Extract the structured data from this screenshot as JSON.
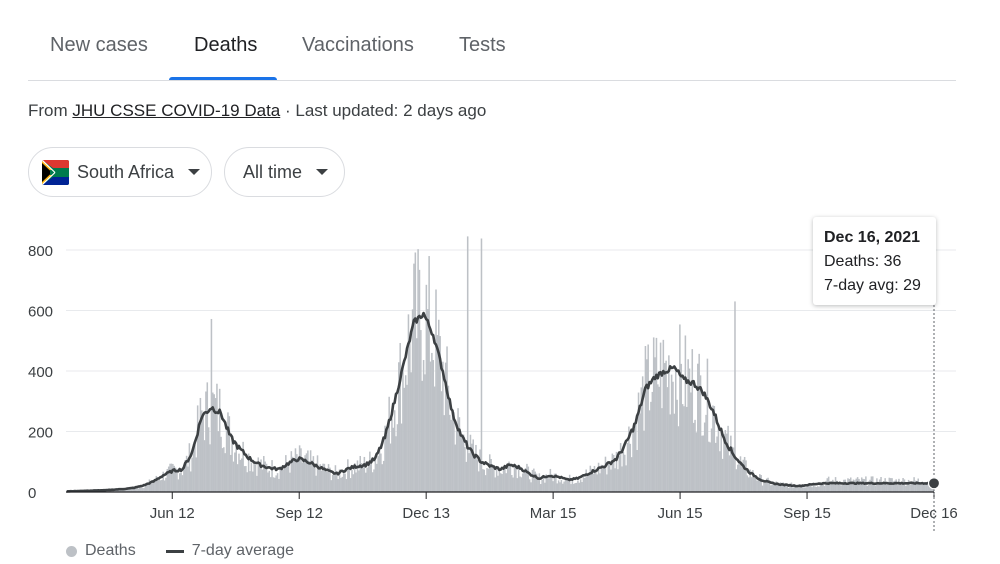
{
  "tabs": [
    {
      "label": "New cases",
      "active": false
    },
    {
      "label": "Deaths",
      "active": true
    },
    {
      "label": "Vaccinations",
      "active": false
    },
    {
      "label": "Tests",
      "active": false
    }
  ],
  "source": {
    "prefix": "From",
    "link": "JHU CSSE COVID-19 Data",
    "updated": "· Last updated: 2 days ago"
  },
  "filters": {
    "country": "South Africa",
    "range": "All time"
  },
  "colors": {
    "bars": "#bdc1c6",
    "average_line": "#3c4043",
    "active_tab": "#1a73e8"
  },
  "tooltip": {
    "date": "Dec 16, 2021",
    "deaths": "Deaths: 36",
    "avg": "7-day avg: 29"
  },
  "legend": {
    "deaths": "Deaths",
    "avg": "7-day average"
  },
  "chart_data": {
    "type": "bar",
    "title": "",
    "xlabel": "",
    "ylabel": "",
    "ylim": [
      0,
      850
    ],
    "yticks": [
      0,
      200,
      400,
      600,
      800
    ],
    "x_start": "2020-03-27",
    "x_end": "2021-12-16",
    "xticks": [
      {
        "label": "Jun 12",
        "date": "2020-06-12"
      },
      {
        "label": "Sep 12",
        "date": "2020-09-12"
      },
      {
        "label": "Dec 13",
        "date": "2020-12-13"
      },
      {
        "label": "Mar 15",
        "date": "2021-03-15"
      },
      {
        "label": "Jun 15",
        "date": "2021-06-15"
      },
      {
        "label": "Sep 15",
        "date": "2021-09-15"
      },
      {
        "label": "Dec 16",
        "date": "2021-12-16"
      }
    ],
    "grid": true,
    "legend_position": "bottom-left",
    "series": [
      {
        "name": "Deaths",
        "type": "bar",
        "weekly_values": [
          2,
          3,
          4,
          5,
          6,
          8,
          10,
          14,
          22,
          35,
          55,
          70,
          75,
          130,
          250,
          280,
          260,
          180,
          140,
          110,
          90,
          80,
          75,
          95,
          110,
          100,
          85,
          70,
          60,
          75,
          85,
          90,
          110,
          180,
          300,
          430,
          560,
          590,
          520,
          400,
          260,
          180,
          130,
          100,
          85,
          75,
          90,
          80,
          60,
          45,
          55,
          50,
          40,
          45,
          60,
          75,
          90,
          110,
          160,
          230,
          340,
          380,
          400,
          410,
          370,
          360,
          330,
          270,
          190,
          130,
          90,
          60,
          40,
          30,
          25,
          22,
          20,
          24,
          28,
          36
        ]
      },
      {
        "name": "7-day average",
        "type": "line",
        "weekly_values": [
          2,
          3,
          4,
          5,
          6,
          8,
          10,
          14,
          22,
          35,
          55,
          70,
          75,
          130,
          250,
          280,
          260,
          180,
          140,
          110,
          90,
          80,
          75,
          95,
          110,
          100,
          85,
          70,
          60,
          75,
          85,
          90,
          110,
          180,
          300,
          430,
          560,
          590,
          520,
          400,
          260,
          180,
          130,
          100,
          85,
          75,
          90,
          80,
          60,
          45,
          55,
          50,
          40,
          45,
          60,
          75,
          90,
          110,
          160,
          230,
          340,
          380,
          400,
          410,
          370,
          360,
          330,
          270,
          190,
          130,
          90,
          60,
          40,
          30,
          25,
          22,
          20,
          24,
          28,
          29
        ]
      }
    ],
    "peaks": [
      {
        "date": "2020-07-10",
        "value": 572
      },
      {
        "date": "2021-01-12",
        "value": 845
      },
      {
        "date": "2021-01-22",
        "value": 838
      },
      {
        "date": "2021-07-25",
        "value": 630
      }
    ],
    "highlight": {
      "date": "2021-12-16",
      "deaths": 36,
      "avg": 29
    }
  }
}
